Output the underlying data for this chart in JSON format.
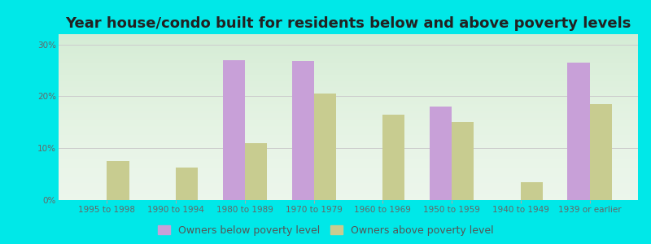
{
  "title": "Year house/condo built for residents below and above poverty levels",
  "categories": [
    "1995 to 1998",
    "1990 to 1994",
    "1980 to 1989",
    "1970 to 1979",
    "1960 to 1969",
    "1950 to 1959",
    "1940 to 1949",
    "1939 or earlier"
  ],
  "below_poverty": [
    0,
    0,
    27.0,
    26.8,
    0,
    18.0,
    0,
    26.5
  ],
  "above_poverty": [
    7.5,
    6.2,
    11.0,
    20.5,
    16.5,
    15.0,
    3.5,
    18.5
  ],
  "below_color": "#c8a0d8",
  "above_color": "#c8cc90",
  "background_outer": "#00e8e8",
  "background_inner_top": "#e8f5e8",
  "background_inner_bottom": "#f8fff8",
  "ylim": [
    0,
    32
  ],
  "yticks": [
    0,
    10,
    20,
    30
  ],
  "ytick_labels": [
    "0%",
    "10%",
    "20%",
    "30%"
  ],
  "legend_below": "Owners below poverty level",
  "legend_above": "Owners above poverty level",
  "title_fontsize": 13,
  "tick_fontsize": 7.5,
  "legend_fontsize": 9,
  "bar_width": 0.32
}
